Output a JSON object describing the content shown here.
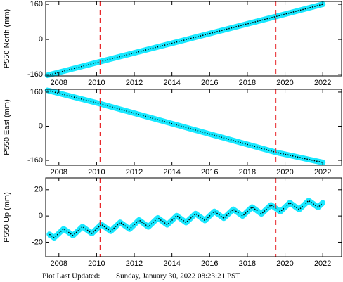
{
  "chart_data": [
    {
      "type": "line",
      "ylabel": "P550 North (mm)",
      "x": [
        2007.4,
        2010.2,
        2019.5,
        2022.0
      ],
      "series": [
        {
          "color": "#00e5ff",
          "values": [
            -163,
            -101,
            104,
            160
          ]
        }
      ],
      "vlines": [
        2010.2,
        2019.5
      ],
      "vline_color": "#e8282b",
      "xlim": [
        2007.3,
        2023.0
      ],
      "xticks": [
        2008,
        2010,
        2012,
        2014,
        2016,
        2018,
        2020,
        2022
      ],
      "ylim": [
        -166,
        173
      ],
      "yticks": [
        -160,
        0,
        160
      ]
    },
    {
      "type": "line",
      "ylabel": "P550 East (mm)",
      "x": [
        2007.4,
        2010.2,
        2019.5,
        2022.0
      ],
      "series": [
        {
          "color": "#00e5ff",
          "values": [
            168,
            105,
            -122,
            -170
          ]
        }
      ],
      "vlines": [
        2010.2,
        2019.5
      ],
      "vline_color": "#e8282b",
      "xlim": [
        2007.3,
        2023.0
      ],
      "xticks": [
        2008,
        2010,
        2012,
        2014,
        2016,
        2018,
        2020,
        2022
      ],
      "ylim": [
        -183,
        173
      ],
      "yticks": [
        -160,
        0,
        160
      ]
    },
    {
      "type": "line",
      "ylabel": "P550 Up (mm)",
      "x": [
        2007.5,
        2007.75,
        2008.0,
        2008.25,
        2008.5,
        2008.75,
        2009.0,
        2009.25,
        2009.5,
        2009.75,
        2010.0,
        2010.25,
        2010.5,
        2010.75,
        2011.0,
        2011.25,
        2011.5,
        2011.75,
        2012.0,
        2012.25,
        2012.5,
        2012.75,
        2013.0,
        2013.25,
        2013.5,
        2013.75,
        2014.0,
        2014.25,
        2014.5,
        2014.75,
        2015.0,
        2015.25,
        2015.5,
        2015.75,
        2016.0,
        2016.25,
        2016.5,
        2016.75,
        2017.0,
        2017.25,
        2017.5,
        2017.75,
        2018.0,
        2018.25,
        2018.5,
        2018.75,
        2019.0,
        2019.25,
        2019.5,
        2019.75,
        2020.0,
        2020.25,
        2020.5,
        2020.75,
        2021.0,
        2021.25,
        2021.5,
        2021.75,
        2022.0
      ],
      "series": [
        {
          "color": "#00e5ff",
          "values": [
            -14,
            -16.6,
            -13.2,
            -9.8,
            -12.3,
            -14.9,
            -11.5,
            -8.1,
            -10.7,
            -13.3,
            -9.9,
            -6.4,
            -9.0,
            -11.6,
            -8.2,
            -4.8,
            -7.4,
            -10.0,
            -6.6,
            -3.1,
            -5.7,
            -8.3,
            -4.9,
            -1.5,
            -4.1,
            -6.7,
            -3.3,
            0.2,
            -2.4,
            -5.0,
            -1.6,
            1.8,
            -0.8,
            -3.4,
            0.1,
            3.5,
            0.9,
            -1.7,
            1.7,
            5.1,
            2.6,
            0.0,
            3.4,
            6.8,
            4.2,
            1.6,
            5.0,
            8.4,
            5.9,
            3.3,
            6.7,
            10.1,
            7.5,
            4.9,
            8.3,
            11.7,
            9.2,
            6.6,
            10.0
          ]
        }
      ],
      "vlines": [
        2010.2,
        2019.5
      ],
      "vline_color": "#e8282b",
      "xlim": [
        2007.3,
        2023.0
      ],
      "xticks": [
        2008,
        2010,
        2012,
        2014,
        2016,
        2018,
        2020,
        2022
      ],
      "ylim": [
        -31,
        29
      ],
      "yticks": [
        -20,
        0,
        20
      ]
    }
  ],
  "footer_label": "Plot Last Updated:",
  "footer_time": "Sunday, January 30, 2022 08:23:21 PST"
}
